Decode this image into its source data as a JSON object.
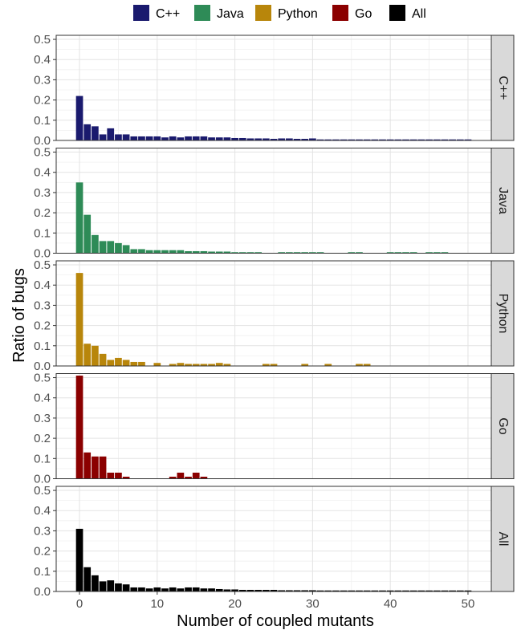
{
  "chart_data": {
    "type": "bar",
    "xlabel": "Number of coupled mutants",
    "ylabel": "Ratio of bugs",
    "xlim": [
      -3,
      53
    ],
    "ylim": [
      0,
      0.52
    ],
    "x_ticks": [
      0,
      10,
      20,
      30,
      40,
      50
    ],
    "y_ticks": [
      0.0,
      0.1,
      0.2,
      0.3,
      0.4,
      0.5
    ],
    "y_tick_labels": [
      "0.0",
      "0.1",
      "0.2",
      "0.3",
      "0.4",
      "0.5"
    ],
    "grid": true,
    "legend_position": "top",
    "series": [
      {
        "name": "C++",
        "color": "#1a1a6e",
        "x": [
          0,
          1,
          2,
          3,
          4,
          5,
          6,
          7,
          8,
          9,
          10,
          11,
          12,
          13,
          14,
          15,
          16,
          17,
          18,
          19,
          20,
          21,
          22,
          23,
          24,
          25,
          26,
          27,
          28,
          29,
          30,
          31,
          32,
          33,
          34,
          35,
          36,
          37,
          38,
          39,
          40,
          41,
          42,
          43,
          44,
          45,
          46,
          47,
          48,
          49,
          50
        ],
        "values": [
          0.22,
          0.08,
          0.07,
          0.03,
          0.06,
          0.03,
          0.03,
          0.02,
          0.02,
          0.02,
          0.02,
          0.015,
          0.02,
          0.015,
          0.02,
          0.02,
          0.02,
          0.015,
          0.015,
          0.015,
          0.012,
          0.012,
          0.01,
          0.01,
          0.01,
          0.008,
          0.01,
          0.01,
          0.008,
          0.008,
          0.01,
          0.005,
          0.005,
          0.005,
          0.005,
          0.005,
          0.005,
          0.005,
          0.005,
          0.005,
          0.005,
          0.005,
          0.005,
          0.005,
          0.005,
          0.005,
          0.005,
          0.005,
          0.005,
          0.005,
          0.005
        ]
      },
      {
        "name": "Java",
        "color": "#2e8b57",
        "x": [
          0,
          1,
          2,
          3,
          4,
          5,
          6,
          7,
          8,
          9,
          10,
          11,
          12,
          13,
          14,
          15,
          16,
          17,
          18,
          19,
          20,
          21,
          22,
          23,
          26,
          27,
          28,
          29,
          30,
          31,
          35,
          36,
          40,
          41,
          42,
          43,
          45,
          46,
          47
        ],
        "values": [
          0.35,
          0.19,
          0.09,
          0.06,
          0.06,
          0.05,
          0.04,
          0.02,
          0.02,
          0.015,
          0.015,
          0.015,
          0.015,
          0.015,
          0.01,
          0.01,
          0.01,
          0.008,
          0.008,
          0.008,
          0.005,
          0.005,
          0.005,
          0.005,
          0.005,
          0.005,
          0.005,
          0.005,
          0.005,
          0.005,
          0.005,
          0.005,
          0.005,
          0.005,
          0.005,
          0.005,
          0.005,
          0.005,
          0.005
        ]
      },
      {
        "name": "Python",
        "color": "#b8860b",
        "x": [
          0,
          1,
          2,
          3,
          4,
          5,
          6,
          7,
          8,
          10,
          12,
          13,
          14,
          15,
          16,
          17,
          18,
          19,
          24,
          25,
          29,
          32,
          36,
          37
        ],
        "values": [
          0.46,
          0.11,
          0.1,
          0.06,
          0.03,
          0.04,
          0.03,
          0.02,
          0.02,
          0.015,
          0.01,
          0.015,
          0.01,
          0.01,
          0.01,
          0.01,
          0.015,
          0.01,
          0.01,
          0.01,
          0.01,
          0.01,
          0.01,
          0.01
        ]
      },
      {
        "name": "Go",
        "color": "#8b0000",
        "x": [
          0,
          1,
          2,
          3,
          4,
          5,
          6,
          12,
          13,
          14,
          15,
          16
        ],
        "values": [
          0.51,
          0.13,
          0.11,
          0.11,
          0.03,
          0.03,
          0.01,
          0.01,
          0.03,
          0.01,
          0.03,
          0.01
        ]
      },
      {
        "name": "All",
        "color": "#000000",
        "x": [
          0,
          1,
          2,
          3,
          4,
          5,
          6,
          7,
          8,
          9,
          10,
          11,
          12,
          13,
          14,
          15,
          16,
          17,
          18,
          19,
          20,
          21,
          22,
          23,
          24,
          25,
          26,
          27,
          28,
          29,
          30,
          31,
          32,
          33,
          34,
          35,
          36,
          37,
          38,
          39,
          40,
          41,
          42,
          43,
          44,
          45,
          46,
          47,
          48,
          49,
          50
        ],
        "values": [
          0.31,
          0.12,
          0.08,
          0.05,
          0.055,
          0.04,
          0.035,
          0.02,
          0.02,
          0.015,
          0.02,
          0.015,
          0.02,
          0.015,
          0.02,
          0.02,
          0.015,
          0.015,
          0.012,
          0.01,
          0.01,
          0.008,
          0.008,
          0.008,
          0.008,
          0.008,
          0.006,
          0.006,
          0.006,
          0.006,
          0.006,
          0.005,
          0.005,
          0.005,
          0.005,
          0.005,
          0.005,
          0.005,
          0.005,
          0.005,
          0.005,
          0.005,
          0.005,
          0.005,
          0.005,
          0.005,
          0.005,
          0.005,
          0.005,
          0.005,
          0.005
        ]
      }
    ]
  }
}
